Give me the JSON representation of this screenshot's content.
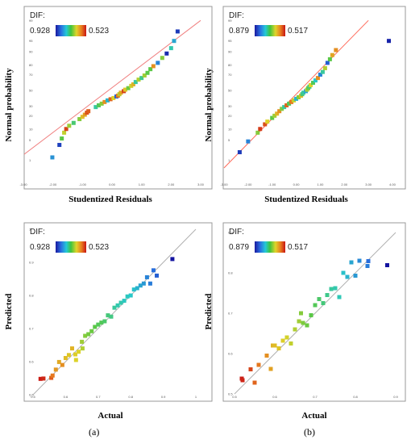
{
  "colors": {
    "frame": "#999999",
    "fit_line_a": "#f08080",
    "fit_line_b": "#ff6a5a",
    "diag_line": "#b0b0b0",
    "label": "#000000"
  },
  "panels": [
    {
      "id": "np_a",
      "legend_title": "DIF:",
      "legend_min": "0.928",
      "legend_max": "0.523"
    },
    {
      "id": "np_b",
      "legend_title": "DIF:",
      "legend_min": "0.879",
      "legend_max": "0.517"
    },
    {
      "id": "pa_a",
      "legend_title": "DIF:",
      "legend_min": "0.928",
      "legend_max": "0.523"
    },
    {
      "id": "pa_b",
      "legend_title": "DIF:",
      "legend_min": "0.879",
      "legend_max": "0.517"
    }
  ],
  "captions": [
    "(a)",
    "(b)"
  ],
  "chart_data": [
    {
      "type": "scatter",
      "panel": "top-left",
      "xlabel": "Studentized Residuals",
      "ylabel": "Normal probability",
      "xlim": [
        -3,
        3
      ],
      "xticks": [
        "-3.00",
        "-2.00",
        "-1.00",
        "0.00",
        "1.00",
        "2.00",
        "3.00"
      ],
      "ylim": [
        1,
        99
      ],
      "yticks": [
        "1",
        "5",
        "10",
        "20",
        "30",
        "50",
        "70",
        "80",
        "90",
        "95",
        "99"
      ],
      "line": [
        [
          -3.0,
          1.6
        ],
        [
          3.0,
          99
        ]
      ],
      "points": [
        [
          -2.02,
          1.3,
          0.83
        ],
        [
          -1.78,
          3.5,
          0.94
        ],
        [
          -1.7,
          5.5,
          0.6
        ],
        [
          -1.62,
          8,
          0.48
        ],
        [
          -1.55,
          10,
          0.12
        ],
        [
          -1.45,
          12,
          0.52
        ],
        [
          -1.3,
          14,
          0.65
        ],
        [
          -1.1,
          17,
          0.55
        ],
        [
          -1.0,
          19,
          0.4
        ],
        [
          -0.92,
          21,
          0.33
        ],
        [
          -0.85,
          23,
          0.15
        ],
        [
          -0.8,
          24.5,
          0.18
        ],
        [
          -0.55,
          29,
          0.7
        ],
        [
          -0.45,
          31,
          0.62
        ],
        [
          -0.35,
          33,
          0.55
        ],
        [
          -0.25,
          35,
          0.3
        ],
        [
          -0.15,
          37,
          0.78
        ],
        [
          -0.05,
          38.5,
          0.2
        ],
        [
          0.05,
          40,
          0.45
        ],
        [
          0.15,
          42,
          0.9
        ],
        [
          0.2,
          43,
          0.25
        ],
        [
          0.25,
          45,
          0.5
        ],
        [
          0.3,
          47,
          0.35
        ],
        [
          0.4,
          49,
          0.1
        ],
        [
          0.45,
          51,
          0.42
        ],
        [
          0.55,
          53,
          0.58
        ],
        [
          0.65,
          56,
          0.47
        ],
        [
          0.72,
          58,
          0.38
        ],
        [
          0.8,
          61,
          0.7
        ],
        [
          0.9,
          64,
          0.5
        ],
        [
          1.0,
          66,
          0.68
        ],
        [
          1.1,
          69,
          0.52
        ],
        [
          1.2,
          72,
          0.6
        ],
        [
          1.3,
          76,
          0.6
        ],
        [
          1.4,
          79,
          0.3
        ],
        [
          1.55,
          82,
          0.85
        ],
        [
          1.7,
          86,
          0.55
        ],
        [
          1.85,
          89,
          0.97
        ],
        [
          2.0,
          92,
          0.72
        ],
        [
          2.1,
          95,
          0.8
        ],
        [
          2.22,
          97.5,
          0.95
        ]
      ]
    },
    {
      "type": "scatter",
      "panel": "top-right",
      "xlabel": "Studentized Residuals",
      "ylabel": "Normal probability",
      "xlim": [
        -3,
        4
      ],
      "xticks": [
        "-3.00",
        "-2.00",
        "-1.00",
        "0.00",
        "1.00",
        "2.00",
        "3.00",
        "4.00"
      ],
      "ylim": [
        1,
        99
      ],
      "yticks": [
        "1",
        "5",
        "10",
        "20",
        "30",
        "50",
        "70",
        "80",
        "90",
        "95",
        "99"
      ],
      "line": [
        [
          -3.0,
          0.5
        ],
        [
          3.0,
          99
        ]
      ],
      "points": [
        [
          -2.35,
          2.0,
          0.95
        ],
        [
          -2.0,
          4.5,
          0.85
        ],
        [
          -1.6,
          8,
          0.55
        ],
        [
          -1.5,
          10,
          0.1
        ],
        [
          -1.3,
          13,
          0.15
        ],
        [
          -1.2,
          15,
          0.45
        ],
        [
          -1.0,
          18,
          0.6
        ],
        [
          -0.9,
          20,
          0.52
        ],
        [
          -0.8,
          22,
          0.38
        ],
        [
          -0.7,
          24.5,
          0.3
        ],
        [
          -0.6,
          27,
          0.55
        ],
        [
          -0.5,
          29,
          0.7
        ],
        [
          -0.4,
          31,
          0.2
        ],
        [
          -0.3,
          33,
          0.62
        ],
        [
          -0.2,
          35,
          0.25
        ],
        [
          -0.1,
          37,
          0.48
        ],
        [
          0.0,
          39,
          0.78
        ],
        [
          0.1,
          41,
          0.55
        ],
        [
          0.2,
          43,
          0.4
        ],
        [
          0.25,
          45,
          0.65
        ],
        [
          0.3,
          47,
          0.7
        ],
        [
          0.4,
          49,
          0.8
        ],
        [
          0.45,
          51,
          0.5
        ],
        [
          0.5,
          53,
          0.58
        ],
        [
          0.55,
          55,
          0.67
        ],
        [
          0.6,
          57,
          0.45
        ],
        [
          0.7,
          60,
          0.62
        ],
        [
          0.8,
          63,
          0.75
        ],
        [
          0.9,
          66,
          0.3
        ],
        [
          1.0,
          70,
          0.85
        ],
        [
          1.1,
          73,
          0.7
        ],
        [
          1.2,
          77,
          0.5
        ],
        [
          1.3,
          82,
          0.9
        ],
        [
          1.4,
          85,
          0.6
        ],
        [
          1.5,
          88,
          0.35
        ],
        [
          1.65,
          91,
          0.3
        ],
        [
          3.85,
          95,
          0.98
        ]
      ]
    },
    {
      "type": "scatter",
      "panel": "bottom-left",
      "xlabel": "Actual",
      "ylabel": "Predicted",
      "xlim": [
        0.5,
        1.0
      ],
      "xticks": [
        "0.5",
        "0.6",
        "0.7",
        "0.8",
        "0.9",
        "1"
      ],
      "ylim": [
        0.5,
        1.0
      ],
      "yticks": [
        "0.5",
        "0.6",
        "0.7",
        "0.8",
        "0.9",
        "1"
      ],
      "line": [
        [
          0.5,
          0.5
        ],
        [
          1.0,
          1.0
        ]
      ],
      "points": [
        [
          0.523,
          0.548,
          0.02
        ],
        [
          0.532,
          0.549,
          0.05
        ],
        [
          0.556,
          0.551,
          0.18
        ],
        [
          0.56,
          0.558,
          0.25
        ],
        [
          0.57,
          0.576,
          0.32
        ],
        [
          0.58,
          0.599,
          0.36
        ],
        [
          0.59,
          0.59,
          0.3
        ],
        [
          0.6,
          0.611,
          0.4
        ],
        [
          0.61,
          0.62,
          0.42
        ],
        [
          0.62,
          0.64,
          0.38
        ],
        [
          0.63,
          0.622,
          0.44
        ],
        [
          0.632,
          0.605,
          0.45
        ],
        [
          0.64,
          0.63,
          0.45
        ],
        [
          0.65,
          0.66,
          0.52
        ],
        [
          0.652,
          0.64,
          0.5
        ],
        [
          0.66,
          0.678,
          0.55
        ],
        [
          0.67,
          0.683,
          0.57
        ],
        [
          0.68,
          0.692,
          0.58
        ],
        [
          0.69,
          0.705,
          0.6
        ],
        [
          0.7,
          0.712,
          0.62
        ],
        [
          0.71,
          0.718,
          0.62
        ],
        [
          0.72,
          0.722,
          0.64
        ],
        [
          0.73,
          0.74,
          0.66
        ],
        [
          0.74,
          0.736,
          0.67
        ],
        [
          0.75,
          0.763,
          0.7
        ],
        [
          0.76,
          0.77,
          0.72
        ],
        [
          0.77,
          0.778,
          0.72
        ],
        [
          0.78,
          0.784,
          0.74
        ],
        [
          0.79,
          0.797,
          0.74
        ],
        [
          0.8,
          0.8,
          0.75
        ],
        [
          0.81,
          0.818,
          0.76
        ],
        [
          0.82,
          0.822,
          0.78
        ],
        [
          0.83,
          0.83,
          0.8
        ],
        [
          0.84,
          0.836,
          0.82
        ],
        [
          0.85,
          0.855,
          0.85
        ],
        [
          0.86,
          0.836,
          0.86
        ],
        [
          0.87,
          0.876,
          0.88
        ],
        [
          0.88,
          0.86,
          0.9
        ],
        [
          0.928,
          0.91,
          1.0
        ]
      ]
    },
    {
      "type": "scatter",
      "panel": "bottom-right",
      "xlabel": "Actual",
      "ylabel": "Predicted",
      "xlim": [
        0.5,
        0.9
      ],
      "xticks": [
        "0.5",
        "0.6",
        "0.7",
        "0.8",
        "0.9"
      ],
      "ylim": [
        0.5,
        0.9
      ],
      "yticks": [
        "0.5",
        "0.6",
        "0.7",
        "0.8",
        "0.9"
      ],
      "line": [
        [
          0.5,
          0.5
        ],
        [
          0.9,
          0.9
        ]
      ],
      "points": [
        [
          0.518,
          0.538,
          0.02
        ],
        [
          0.52,
          0.534,
          0.04
        ],
        [
          0.54,
          0.561,
          0.12
        ],
        [
          0.55,
          0.528,
          0.2
        ],
        [
          0.56,
          0.572,
          0.25
        ],
        [
          0.58,
          0.595,
          0.3
        ],
        [
          0.59,
          0.562,
          0.34
        ],
        [
          0.595,
          0.62,
          0.38
        ],
        [
          0.6,
          0.62,
          0.4
        ],
        [
          0.61,
          0.613,
          0.42
        ],
        [
          0.62,
          0.632,
          0.44
        ],
        [
          0.63,
          0.64,
          0.46
        ],
        [
          0.64,
          0.625,
          0.48
        ],
        [
          0.65,
          0.66,
          0.5
        ],
        [
          0.66,
          0.68,
          0.52
        ],
        [
          0.665,
          0.7,
          0.55
        ],
        [
          0.67,
          0.676,
          0.56
        ],
        [
          0.68,
          0.67,
          0.58
        ],
        [
          0.69,
          0.695,
          0.6
        ],
        [
          0.7,
          0.72,
          0.62
        ],
        [
          0.71,
          0.735,
          0.64
        ],
        [
          0.72,
          0.725,
          0.66
        ],
        [
          0.73,
          0.745,
          0.68
        ],
        [
          0.74,
          0.76,
          0.7
        ],
        [
          0.75,
          0.762,
          0.72
        ],
        [
          0.76,
          0.74,
          0.73
        ],
        [
          0.77,
          0.8,
          0.76
        ],
        [
          0.78,
          0.79,
          0.78
        ],
        [
          0.79,
          0.826,
          0.8
        ],
        [
          0.8,
          0.793,
          0.82
        ],
        [
          0.81,
          0.83,
          0.84
        ],
        [
          0.83,
          0.817,
          0.86
        ],
        [
          0.832,
          0.829,
          0.88
        ],
        [
          0.879,
          0.819,
          1.0
        ]
      ]
    }
  ]
}
